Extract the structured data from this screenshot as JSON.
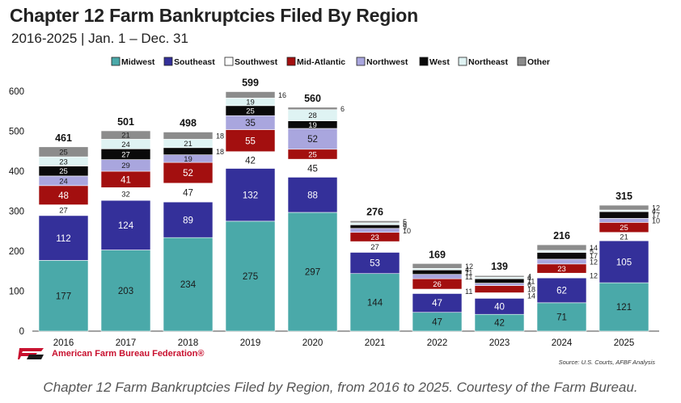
{
  "header": {
    "title": "Chapter 12 Farm Bankruptcies Filed By Region",
    "subtitle": "2016-2025 | Jan. 1 – Dec. 31"
  },
  "brand": {
    "name": "American Farm Bureau Federation®",
    "logo_icon": "afbf-logo-icon"
  },
  "source": "Source: U.S. Courts, AFBF Analysis",
  "caption": "Chapter 12 Farm Bankruptcies Filed by Region, from 2016 to 2025. Courtesy of the Farm Bureau.",
  "chart_data": {
    "type": "bar",
    "stacked": true,
    "ylim": [
      0,
      600
    ],
    "yticks": [
      0,
      100,
      200,
      300,
      400,
      500,
      600
    ],
    "categories": [
      "2016",
      "2017",
      "2018",
      "2019",
      "2020",
      "2021",
      "2022",
      "2023",
      "2024",
      "2025"
    ],
    "totals": [
      461,
      501,
      498,
      599,
      560,
      276,
      169,
      139,
      216,
      315
    ],
    "legend_position": "top",
    "grid": false,
    "series": [
      {
        "name": "Midwest",
        "color": "#4aa9a9",
        "label_color": "#1a1a1a",
        "values": [
          177,
          203,
          234,
          275,
          297,
          144,
          47,
          42,
          71,
          121
        ]
      },
      {
        "name": "Southeast",
        "color": "#34309a",
        "label_color": "#ffffff",
        "values": [
          112,
          124,
          89,
          132,
          88,
          53,
          47,
          40,
          62,
          105
        ]
      },
      {
        "name": "Southwest",
        "color": "#ffffff",
        "label_color": "#1a1a1a",
        "values": [
          27,
          32,
          47,
          42,
          45,
          27,
          11,
          14,
          12,
          21
        ]
      },
      {
        "name": "Mid-Atlantic",
        "color": "#a30f0f",
        "label_color": "#ffffff",
        "values": [
          48,
          41,
          52,
          55,
          25,
          23,
          26,
          18,
          23,
          25
        ]
      },
      {
        "name": "Northwest",
        "color": "#a9a6de",
        "label_color": "#1a1a1a",
        "values": [
          24,
          29,
          19,
          35,
          52,
          10,
          11,
          6,
          12,
          10
        ]
      },
      {
        "name": "West",
        "color": "#0a0a0a",
        "label_color": "#ffffff",
        "values": [
          25,
          27,
          18,
          25,
          19,
          9,
          11,
          11,
          17,
          17
        ]
      },
      {
        "name": "Northeast",
        "color": "#dff3f3",
        "label_color": "#1a1a1a",
        "values": [
          23,
          24,
          21,
          19,
          28,
          5,
          4,
          4,
          5,
          4
        ]
      },
      {
        "name": "Other",
        "color": "#8c8c8c",
        "label_color": "#1a1a1a",
        "values": [
          25,
          21,
          18,
          16,
          6,
          5,
          12,
          4,
          14,
          12
        ]
      }
    ]
  }
}
